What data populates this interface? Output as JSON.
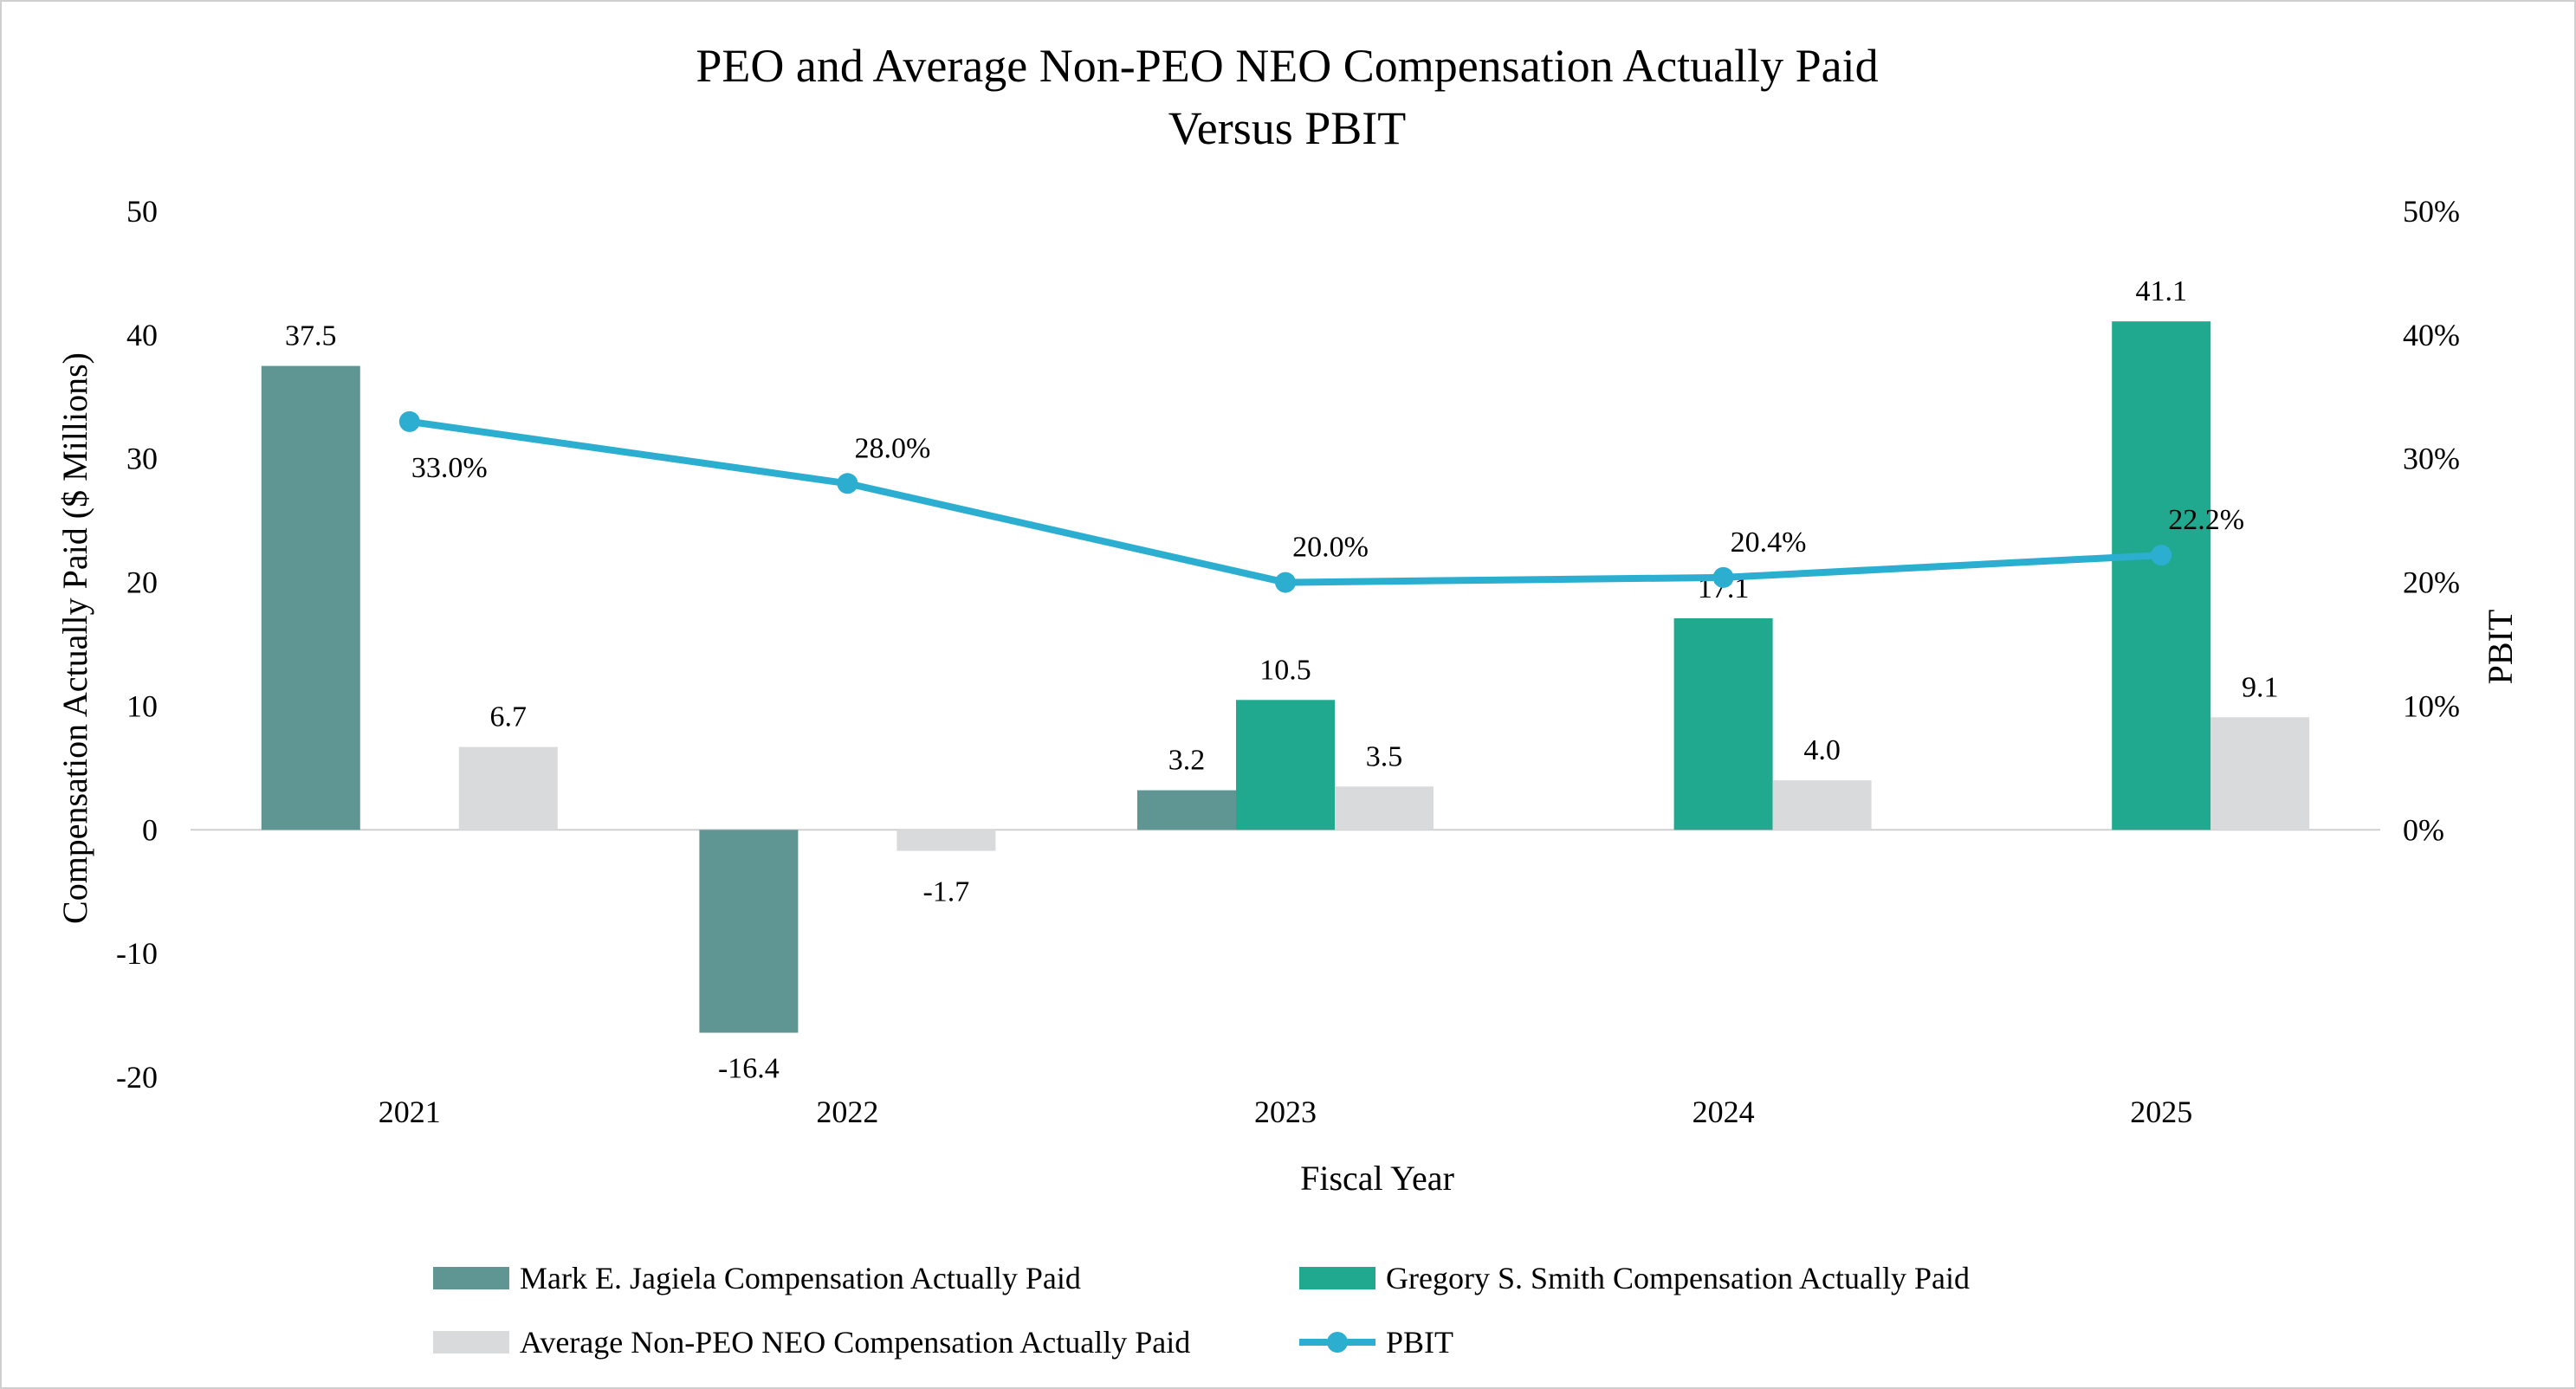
{
  "chart_data": {
    "type": "bar",
    "title_lines": [
      "PEO and Average Non-PEO NEO Compensation Actually Paid",
      "Versus PBIT"
    ],
    "xlabel": "Fiscal Year",
    "ylabel": "Compensation Actually Paid ($ Millions)",
    "y2label": "PBIT",
    "categories": [
      "2021",
      "2022",
      "2023",
      "2024",
      "2025"
    ],
    "ylim": [
      -20,
      50
    ],
    "yticks": [
      -20,
      -10,
      0,
      10,
      20,
      30,
      40,
      50
    ],
    "ytick_labels": [
      "-20",
      "-10",
      "0",
      "10",
      "20",
      "30",
      "40",
      "50"
    ],
    "y2lim": [
      0,
      50
    ],
    "y2ticks": [
      0,
      10,
      20,
      30,
      40,
      50
    ],
    "y2tick_labels": [
      "0%",
      "10%",
      "20%",
      "30%",
      "40%",
      "50%"
    ],
    "grid": false,
    "legend_position": "bottom",
    "colors": {
      "mark": "#5f9592",
      "gregory": "#20a98e",
      "average": "#d9dadc",
      "pbit": "#2baed0",
      "axis": "#d0d0d0"
    },
    "series": [
      {
        "name": "Mark E. Jagiela Compensation Actually Paid",
        "type": "bar",
        "slot": 0,
        "color": "#5f9592",
        "values": [
          37.5,
          -16.4,
          3.2,
          null,
          null
        ],
        "labels": [
          "37.5",
          "-16.4",
          "3.2",
          null,
          null
        ]
      },
      {
        "name": "Gregory S. Smith Compensation Actually Paid",
        "type": "bar",
        "slot": 1,
        "color": "#20a98e",
        "values": [
          null,
          null,
          10.5,
          17.1,
          41.1
        ],
        "labels": [
          null,
          null,
          "10.5",
          "17.1",
          "41.1"
        ]
      },
      {
        "name": "Average Non-PEO NEO Compensation Actually Paid",
        "type": "bar",
        "slot": 2,
        "color": "#d9dadc",
        "values": [
          6.7,
          -1.7,
          3.5,
          4.0,
          9.1
        ],
        "labels": [
          "6.7",
          "-1.7",
          "3.5",
          "4.0",
          "9.1"
        ]
      },
      {
        "name": "PBIT",
        "type": "line",
        "axis": "right",
        "color": "#2baed0",
        "values": [
          33.0,
          28.0,
          20.0,
          20.4,
          22.2
        ],
        "labels": [
          "33.0%",
          "28.0%",
          "20.0%",
          "20.4%",
          "22.2%"
        ]
      }
    ]
  }
}
